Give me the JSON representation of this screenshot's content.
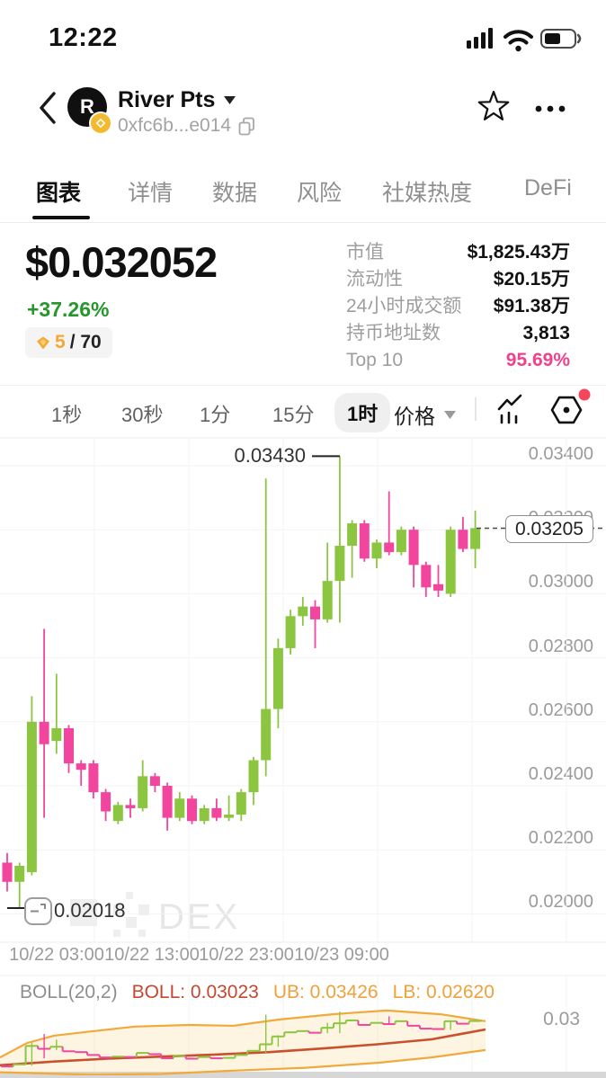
{
  "status_bar": {
    "time": "12:22"
  },
  "header": {
    "token_name": "River Pts",
    "avatar_letter": "R",
    "contract_address": "0xfc6b...e014"
  },
  "tabs": {
    "items": [
      "图表",
      "详情",
      "数据",
      "风险",
      "社媒热度",
      "DeFi"
    ],
    "active": "图表"
  },
  "price_panel": {
    "price": "$0.032052",
    "change": "+37.26%",
    "rank": "5",
    "rank_total": "/ 70"
  },
  "stats": {
    "rows": [
      {
        "label": "市值",
        "value": "$1,825.43万"
      },
      {
        "label": "流动性",
        "value": "$20.15万"
      },
      {
        "label": "24小时成交额",
        "value": "$91.38万"
      },
      {
        "label": "持币地址数",
        "value": "3,813"
      },
      {
        "label": "Top 10",
        "value": "95.69%"
      }
    ]
  },
  "toolbar": {
    "timeframes": [
      "1秒",
      "30秒",
      "1分",
      "15分",
      "1时"
    ],
    "selected_timeframe": "1时",
    "chart_type": "价格"
  },
  "watermark": "DEX",
  "icons": {
    "back": "chevron-left-icon",
    "dropdown": "caret-down-icon",
    "copy": "copy-icon",
    "favorite": "star-outline-icon",
    "more": "ellipsis-icon",
    "signal": "signal-bars-icon",
    "wifi": "wifi-icon",
    "battery": "battery-half-icon",
    "rank_gem": "gem-icon",
    "chain": "bnb-chain-icon",
    "indicator": "trend-chart-icon",
    "settings": "hexagon-dot-icon",
    "screenshot": "screenshot-icon"
  },
  "colors": {
    "up": "#8CC640",
    "down": "#F2459D",
    "change_green": "#27962C",
    "top10_pink": "#F0418C",
    "boll_mid": "#C8502D",
    "boll_band": "#F2A93B",
    "boll_fill": "#F6C45C",
    "badge_gold": "#F6A832",
    "alert_red": "#F5475C",
    "bnb_yellow": "#F3BA2F",
    "grid": "#F3F3F3",
    "axis_text": "#9B9B9B"
  },
  "chart_data": {
    "type": "candlestick",
    "interval": "1时",
    "grid": true,
    "y_ticks": [
      "0.03400",
      "0.03200",
      "0.03000",
      "0.02800",
      "0.02600",
      "0.02400",
      "0.02200",
      "0.02000"
    ],
    "x_ticks": [
      "10/22 03:00",
      "10/22 13:00",
      "10/22 23:00",
      "10/23 09:00"
    ],
    "high_label": "0.03430",
    "low_label": "0.02018",
    "last_price": "0.03205",
    "y_range": [
      0.0196,
      0.0345
    ],
    "candles": [
      [
        0.0216,
        0.0219,
        0.0207,
        0.021
      ],
      [
        0.021,
        0.0216,
        0.02018,
        0.0215
      ],
      [
        0.0213,
        0.0268,
        0.0212,
        0.026
      ],
      [
        0.026,
        0.0289,
        0.023,
        0.0253
      ],
      [
        0.0254,
        0.0275,
        0.025,
        0.0258
      ],
      [
        0.0258,
        0.0259,
        0.0244,
        0.0247
      ],
      [
        0.0247,
        0.0248,
        0.024,
        0.0245
      ],
      [
        0.0247,
        0.0248,
        0.0236,
        0.0238
      ],
      [
        0.0238,
        0.0239,
        0.0229,
        0.0232
      ],
      [
        0.0229,
        0.0235,
        0.0228,
        0.0234
      ],
      [
        0.0234,
        0.0236,
        0.023,
        0.0233
      ],
      [
        0.0233,
        0.0248,
        0.0232,
        0.0243
      ],
      [
        0.0243,
        0.0244,
        0.0238,
        0.024
      ],
      [
        0.024,
        0.0241,
        0.0226,
        0.023
      ],
      [
        0.023,
        0.0238,
        0.0229,
        0.0236
      ],
      [
        0.0236,
        0.0237,
        0.0228,
        0.0229
      ],
      [
        0.0229,
        0.0234,
        0.0228,
        0.0233
      ],
      [
        0.0233,
        0.0236,
        0.0229,
        0.023
      ],
      [
        0.023,
        0.0237,
        0.0229,
        0.0231
      ],
      [
        0.0231,
        0.0239,
        0.0229,
        0.0238
      ],
      [
        0.0238,
        0.0249,
        0.0234,
        0.0248
      ],
      [
        0.0248,
        0.0336,
        0.0243,
        0.0264
      ],
      [
        0.0264,
        0.0286,
        0.0258,
        0.0283
      ],
      [
        0.0283,
        0.0295,
        0.0281,
        0.0293
      ],
      [
        0.0293,
        0.0299,
        0.029,
        0.0296
      ],
      [
        0.0296,
        0.0298,
        0.0283,
        0.0292
      ],
      [
        0.0292,
        0.0316,
        0.0291,
        0.0304
      ],
      [
        0.0304,
        0.0343,
        0.0291,
        0.0315
      ],
      [
        0.0315,
        0.0323,
        0.0305,
        0.0322
      ],
      [
        0.0322,
        0.0323,
        0.031,
        0.0311
      ],
      [
        0.0311,
        0.0317,
        0.0308,
        0.0316
      ],
      [
        0.0316,
        0.0332,
        0.0312,
        0.0313
      ],
      [
        0.0313,
        0.0321,
        0.0312,
        0.032
      ],
      [
        0.032,
        0.0321,
        0.0302,
        0.0309
      ],
      [
        0.0309,
        0.031,
        0.0299,
        0.0302
      ],
      [
        0.0303,
        0.0309,
        0.0299,
        0.0301
      ],
      [
        0.03,
        0.0321,
        0.0299,
        0.032
      ],
      [
        0.032,
        0.0324,
        0.0313,
        0.0314
      ],
      [
        0.0314,
        0.0326,
        0.0308,
        0.03205
      ]
    ],
    "boll": {
      "params_label": "BOLL(20,2)",
      "mid_label": "BOLL: 0.03023",
      "ub_label": "UB: 0.03426",
      "lb_label": "LB: 0.02620",
      "axis_label": "0.03",
      "upper": [
        [
          0,
          0.0232
        ],
        [
          30,
          0.0267
        ],
        [
          60,
          0.0285
        ],
        [
          100,
          0.0295
        ],
        [
          150,
          0.0307
        ],
        [
          210,
          0.0311
        ],
        [
          260,
          0.0309
        ],
        [
          310,
          0.0324
        ],
        [
          370,
          0.0337
        ],
        [
          430,
          0.0346
        ],
        [
          490,
          0.0337
        ],
        [
          540,
          0.032
        ]
      ],
      "middle": [
        [
          0,
          0.0213
        ],
        [
          60,
          0.0222
        ],
        [
          120,
          0.0229
        ],
        [
          180,
          0.0234
        ],
        [
          240,
          0.0239
        ],
        [
          300,
          0.0245
        ],
        [
          360,
          0.0254
        ],
        [
          420,
          0.0264
        ],
        [
          480,
          0.0276
        ],
        [
          540,
          0.03
        ]
      ],
      "lower": [
        [
          0,
          0.0196
        ],
        [
          100,
          0.019
        ],
        [
          180,
          0.0192
        ],
        [
          260,
          0.02
        ],
        [
          340,
          0.0207
        ],
        [
          420,
          0.0219
        ],
        [
          480,
          0.0232
        ],
        [
          540,
          0.025
        ]
      ]
    }
  }
}
